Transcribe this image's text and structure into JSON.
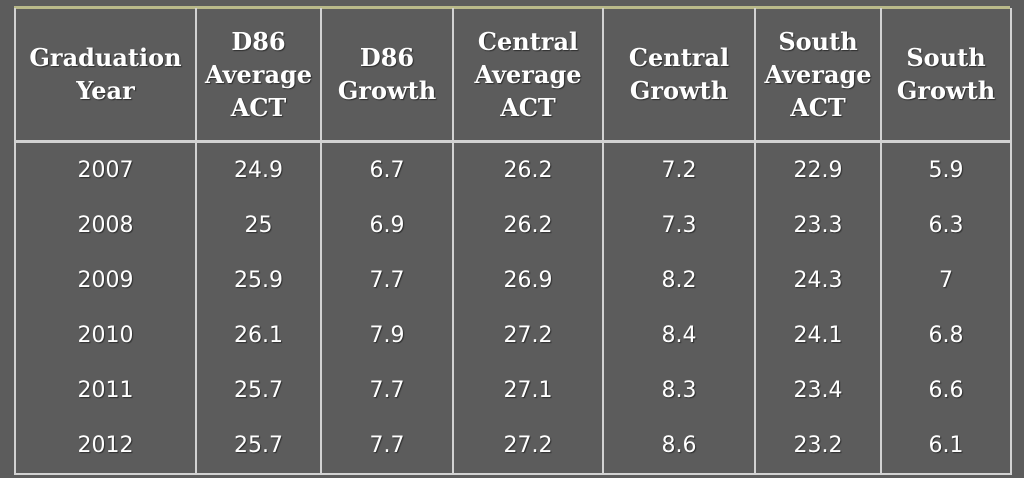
{
  "chart_data": {
    "type": "table",
    "columns": [
      "Graduation\nYear",
      "D86\nAverage\nACT",
      "D86\nGrowth",
      "Central\nAverage\nACT",
      "Central\nGrowth",
      "South\nAverage\nACT",
      "South\nGrowth"
    ],
    "rows": [
      [
        "2007",
        "24.9",
        "6.7",
        "26.2",
        "7.2",
        "22.9",
        "5.9"
      ],
      [
        "2008",
        "25",
        "6.9",
        "26.2",
        "7.3",
        "23.3",
        "6.3"
      ],
      [
        "2009",
        "25.9",
        "7.7",
        "26.9",
        "8.2",
        "24.3",
        "7"
      ],
      [
        "2010",
        "26.1",
        "7.9",
        "27.2",
        "8.4",
        "24.1",
        "6.8"
      ],
      [
        "2011",
        "25.7",
        "7.7",
        "27.1",
        "8.3",
        "23.4",
        "6.6"
      ],
      [
        "2012",
        "25.7",
        "7.7",
        "27.2",
        "8.6",
        "23.2",
        "6.1"
      ]
    ]
  },
  "colors": {
    "background": "#5c5c5c",
    "gridline": "#d2d2d2",
    "accent_line": "#b9b98a",
    "text": "#ffffff"
  }
}
